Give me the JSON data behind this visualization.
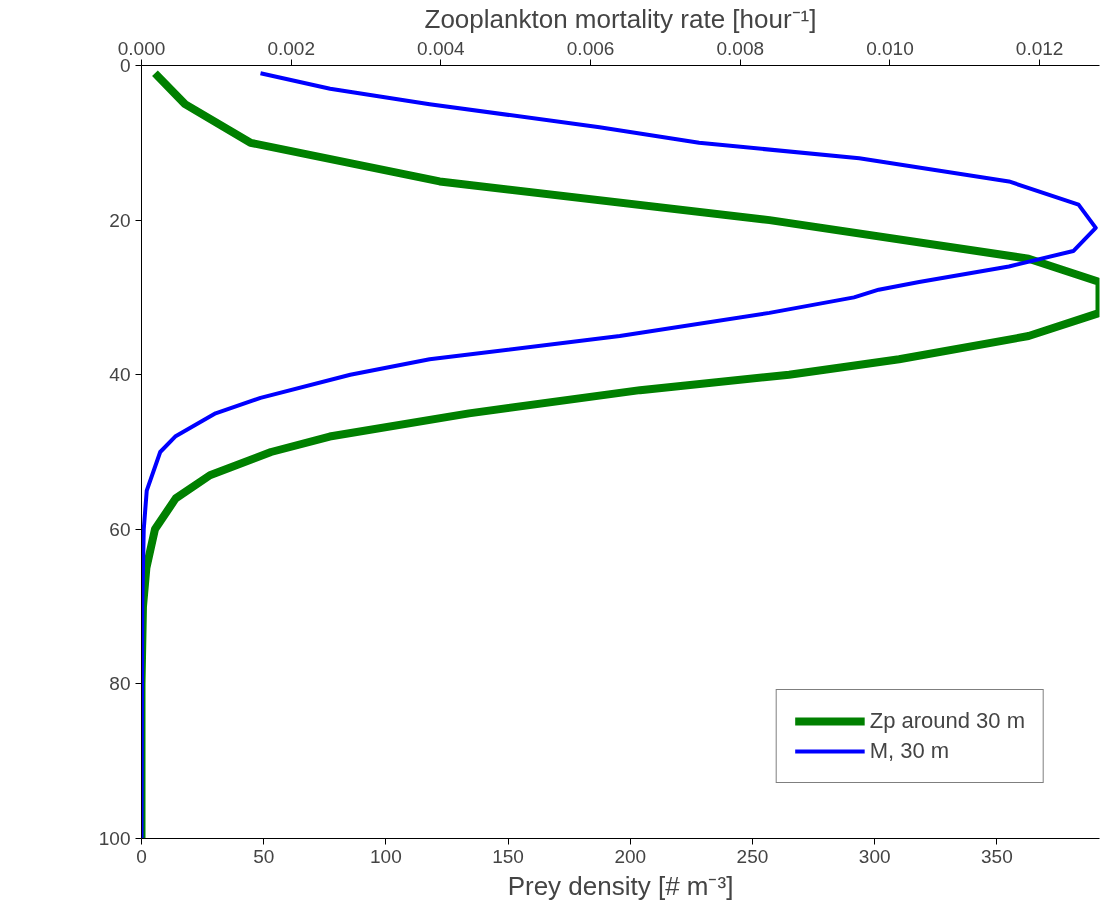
{
  "chart_data": {
    "type": "line",
    "xlabel": "Prey density [# m⁻³]",
    "x2label": "Zooplankton mortality rate [hour⁻¹]",
    "xlim": [
      0,
      392
    ],
    "xticks": [
      0,
      50,
      100,
      150,
      200,
      250,
      300,
      350
    ],
    "x2lim": [
      0,
      0.0128
    ],
    "x2ticks": [
      {
        "value": 0,
        "label": "0.000"
      },
      {
        "value": 0.002,
        "label": "0.002"
      },
      {
        "value": 0.004,
        "label": "0.004"
      },
      {
        "value": 0.006,
        "label": "0.006"
      },
      {
        "value": 0.008,
        "label": "0.008"
      },
      {
        "value": 0.01,
        "label": "0.010"
      },
      {
        "value": 0.012,
        "label": "0.012"
      }
    ],
    "ylim": [
      100,
      0
    ],
    "yticks": [
      0,
      20,
      40,
      60,
      80,
      100
    ],
    "grid": false,
    "legend": "bottom right",
    "marker": "none",
    "line_style": "solid",
    "series": [
      {
        "name": "Zp around 30 m",
        "color": "#008000",
        "x": [
          5.5,
          17.8,
          44.6,
          122,
          257,
          363,
          392,
          392,
          363,
          310,
          265,
          204,
          134,
          77,
          53,
          28,
          14,
          5.5,
          2,
          0.6,
          0,
          0
        ],
        "values": [
          1,
          5,
          10,
          15,
          20,
          25,
          28,
          32,
          35,
          38,
          40,
          42,
          45,
          48,
          50,
          53,
          56,
          60,
          65,
          70,
          80,
          100
        ]
      },
      {
        "name": "M, 30 m",
        "color": "#0000ff",
        "axis": "x2",
        "x": [
          0.00159,
          0.00252,
          0.00385,
          0.00612,
          0.00745,
          0.00959,
          0.01159,
          0.01252,
          0.01275,
          0.01245,
          0.01159,
          0.01039,
          0.00985,
          0.00952,
          0.00839,
          0.00639,
          0.00385,
          0.00279,
          0.00159,
          0.00099,
          0.00045,
          0.00025,
          7e-05,
          3e-05,
          1e-05,
          0
        ],
        "values": [
          1,
          3,
          5,
          8,
          10,
          12,
          15,
          18,
          21,
          24,
          26,
          28,
          29,
          30,
          32,
          35,
          38,
          40,
          43,
          45,
          48,
          50,
          55,
          60,
          70,
          100
        ]
      }
    ]
  }
}
